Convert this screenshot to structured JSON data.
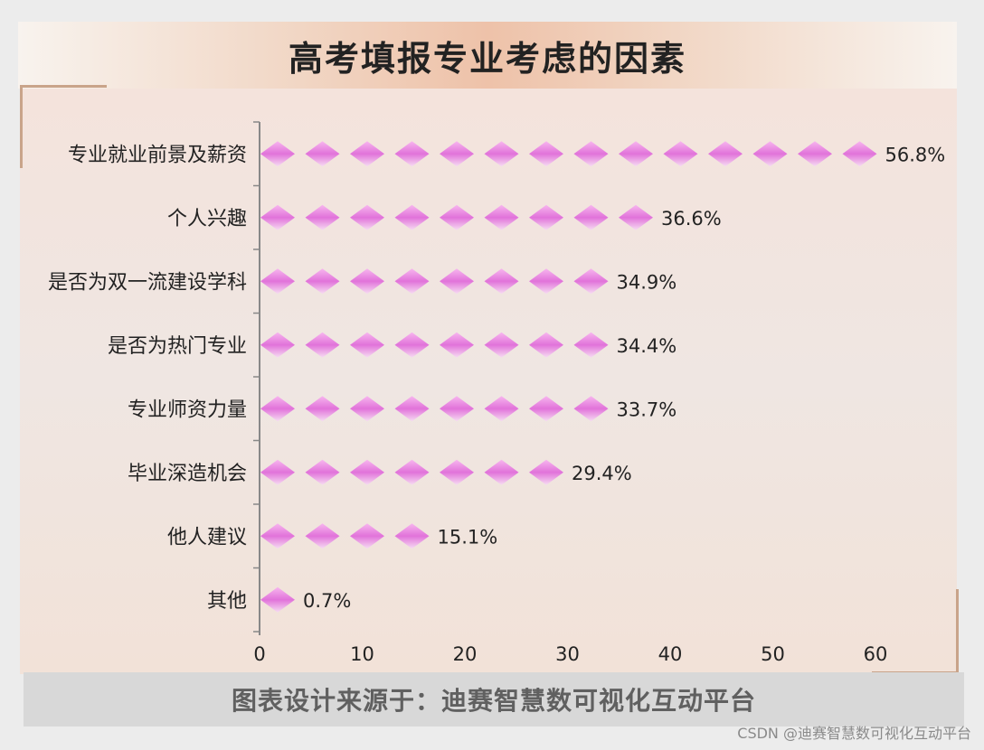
{
  "title": "高考填报专业考虑的因素",
  "footer": "图表设计来源于：迪赛智慧数可视化互动平台",
  "watermark": "CSDN @迪赛智慧数可视化互动平台",
  "colors": {
    "diamond_top": "#f7b6ee",
    "diamond_mid": "#e173da",
    "diamond_bottom": "#f3d6f0",
    "axis": "#888888"
  },
  "chart_data": {
    "type": "bar",
    "title": "高考填报专业考虑的因素",
    "xlabel": "",
    "ylabel": "",
    "categories": [
      "专业就业前景及薪资",
      "个人兴趣",
      "是否为双一流建设学科",
      "是否为热门专业",
      "专业师资力量",
      "毕业深造机会",
      "他人建议",
      "其他"
    ],
    "values": [
      56.8,
      36.6,
      34.9,
      34.4,
      33.7,
      29.4,
      15.1,
      0.7
    ],
    "value_labels": [
      "56.8%",
      "36.6%",
      "34.9%",
      "34.4%",
      "33.7%",
      "29.4%",
      "15.1%",
      "0.7%"
    ],
    "xlim": [
      0,
      60
    ],
    "xticks": [
      0,
      10,
      20,
      30,
      40,
      50,
      60
    ],
    "orientation": "horizontal",
    "mark": "pictorial-diamond",
    "grid": false
  }
}
